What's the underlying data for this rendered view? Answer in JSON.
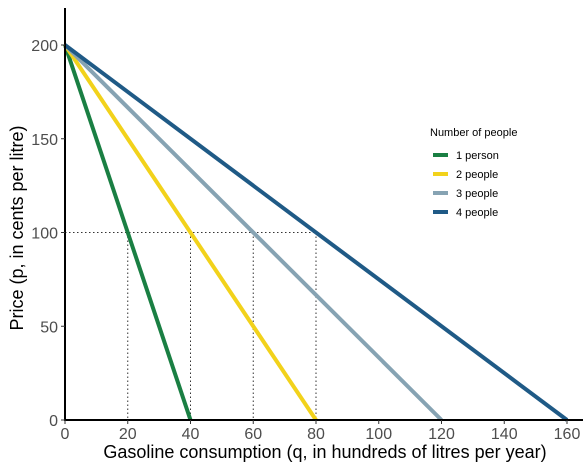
{
  "chart_data": {
    "type": "line",
    "xlabel": "Gasoline consumption (q, in hundreds of litres per year)",
    "ylabel": "Price (p, in cents per litre)",
    "xlim": [
      0,
      160
    ],
    "ylim": [
      0,
      200
    ],
    "xticks": [
      "0",
      "20",
      "40",
      "60",
      "80",
      "100",
      "120",
      "140",
      "160"
    ],
    "yticks": [
      "0",
      "50",
      "100",
      "150",
      "200"
    ],
    "grid": false,
    "legend": {
      "title": "Number of people",
      "placement": "right"
    },
    "series": [
      {
        "name": "1 person",
        "color": "#1a7f43",
        "x": [
          0,
          40
        ],
        "y": [
          200,
          0
        ]
      },
      {
        "name": "2 people",
        "color": "#f2d21b",
        "x": [
          0,
          80
        ],
        "y": [
          200,
          0
        ]
      },
      {
        "name": "3 people",
        "color": "#86a3b3",
        "x": [
          0,
          120
        ],
        "y": [
          200,
          0
        ]
      },
      {
        "name": "4 people",
        "color": "#1f5a86",
        "x": [
          0,
          160
        ],
        "y": [
          200,
          0
        ]
      }
    ],
    "reference_lines": {
      "price": 100,
      "quantities": [
        20,
        40,
        60,
        80
      ]
    }
  }
}
